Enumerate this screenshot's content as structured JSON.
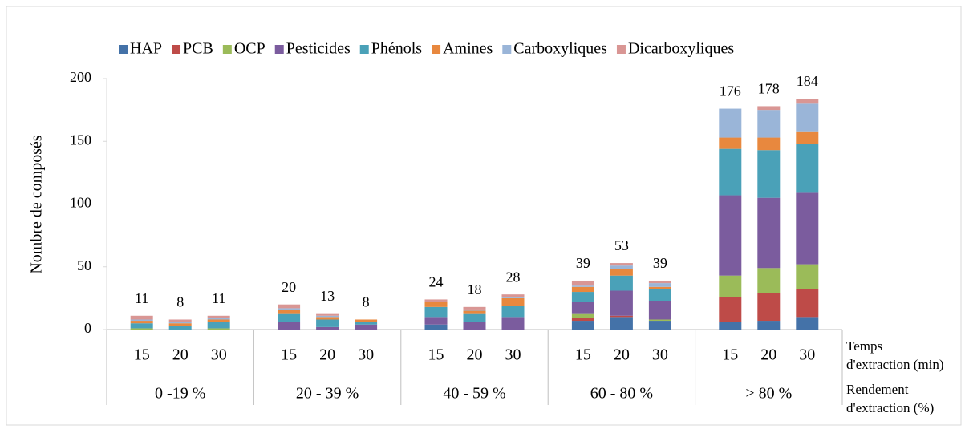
{
  "chart_data": {
    "type": "stacked_bar",
    "y_label": "Nombre de composés",
    "ylim": [
      0,
      200
    ],
    "yticks": [
      0,
      50,
      100,
      150,
      200
    ],
    "legend": "top",
    "categories": [
      "15",
      "20",
      "30",
      "15",
      "20",
      "30",
      "15",
      "20",
      "30",
      "15",
      "20",
      "30",
      "15",
      "20",
      "30"
    ],
    "groups": [
      "0 -19 %",
      "20 - 39 %",
      "40 - 59 %",
      "60 - 80 %",
      "> 80 %"
    ],
    "x_label": [
      "Temps",
      "d'extraction (min)"
    ],
    "group_label": [
      "Rendement",
      "d'extraction (%)"
    ],
    "totals": [
      11,
      8,
      11,
      20,
      13,
      8,
      24,
      18,
      28,
      39,
      53,
      39,
      176,
      178,
      184
    ],
    "series": [
      {
        "name": "HAP",
        "color": "#4472a8",
        "values": [
          0,
          0,
          0,
          0,
          0,
          0,
          4,
          0,
          0,
          7,
          10,
          7,
          6,
          7,
          10
        ]
      },
      {
        "name": "PCB",
        "color": "#be4b48",
        "values": [
          0,
          0,
          0,
          0,
          0,
          0,
          0,
          0,
          0,
          2,
          1,
          0,
          20,
          22,
          22
        ]
      },
      {
        "name": "OCP",
        "color": "#9bbb59",
        "values": [
          1,
          0,
          1,
          0,
          0,
          0,
          0,
          0,
          0,
          4,
          0,
          1,
          17,
          20,
          20
        ]
      },
      {
        "name": "Pesticides",
        "color": "#7b5c9e",
        "values": [
          0,
          0,
          0,
          6,
          2,
          4,
          6,
          6,
          10,
          9,
          20,
          15,
          64,
          56,
          57
        ]
      },
      {
        "name": "Phénols",
        "color": "#4aa1b8",
        "values": [
          4,
          3,
          5,
          7,
          6,
          2,
          8,
          7,
          9,
          8,
          12,
          9,
          37,
          38,
          39
        ]
      },
      {
        "name": "Amines",
        "color": "#e8883e",
        "values": [
          2,
          2,
          2,
          3,
          2,
          2,
          4,
          2,
          6,
          4,
          5,
          2,
          9,
          10,
          10
        ]
      },
      {
        "name": "Carboxyliques",
        "color": "#9ab5d8",
        "values": [
          1,
          1,
          1,
          1,
          1,
          0,
          0,
          1,
          1,
          1,
          3,
          3,
          23,
          22,
          22
        ]
      },
      {
        "name": "Dicarboxyliques",
        "color": "#d99694",
        "values": [
          3,
          2,
          2,
          3,
          2,
          0,
          2,
          2,
          2,
          4,
          2,
          2,
          0,
          3,
          4
        ]
      }
    ]
  }
}
